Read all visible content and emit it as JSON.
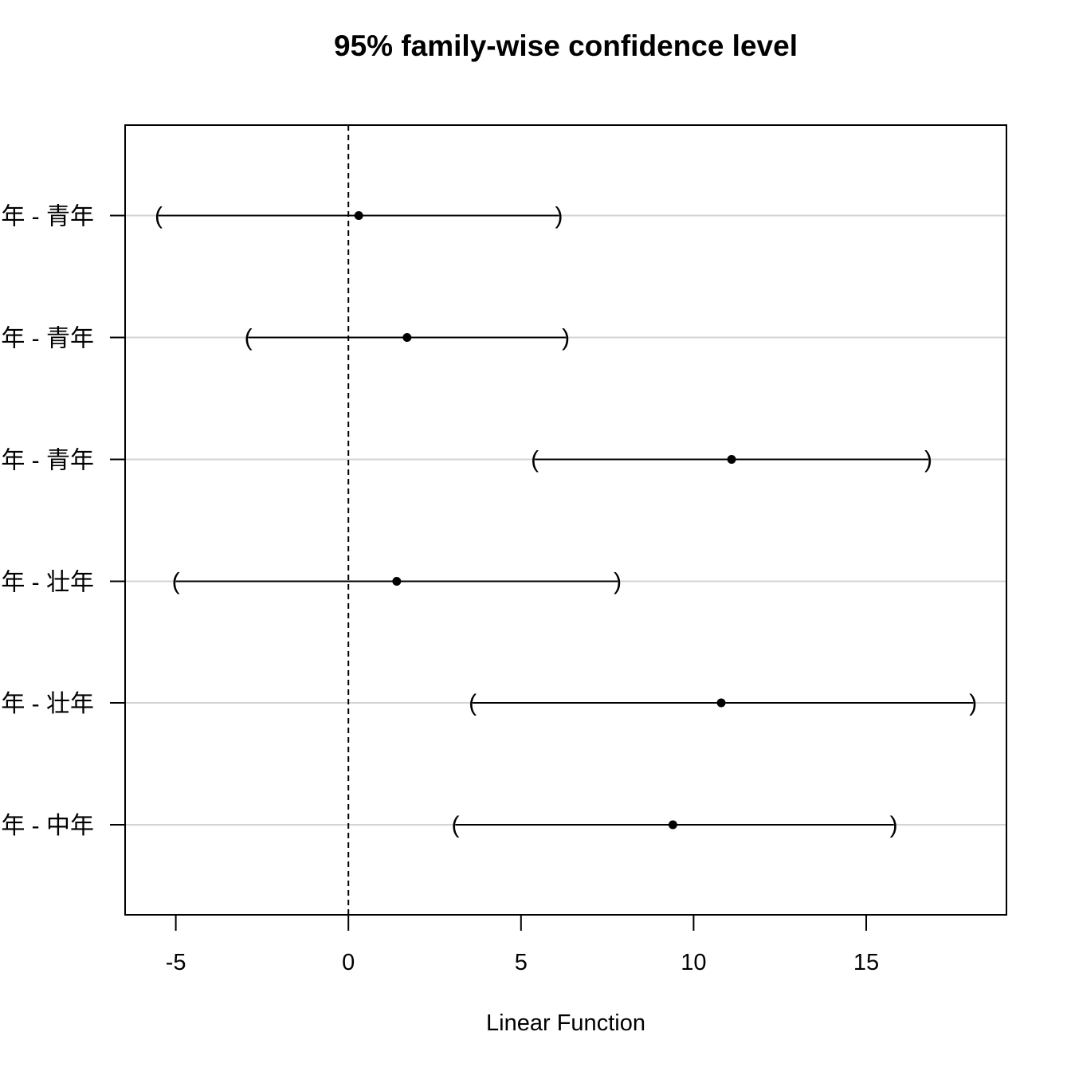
{
  "chart_data": {
    "type": "interval",
    "title": "95% family-wise confidence level",
    "xlabel": "Linear Function",
    "ylabel": "",
    "xlim": [
      -6.5,
      19
    ],
    "xticks": [
      -5,
      0,
      5,
      10,
      15
    ],
    "xtick_labels": [
      "-5",
      "0",
      "5",
      "10",
      "15"
    ],
    "reference_line": 0,
    "grid": "horizontal",
    "comparisons": [
      {
        "label": "年 - 青年",
        "estimate": 0.3,
        "lwr": -5.5,
        "upr": 6.1
      },
      {
        "label": "年 - 青年",
        "estimate": 1.7,
        "lwr": -2.9,
        "upr": 6.3
      },
      {
        "label": "年 - 青年",
        "estimate": 11.1,
        "lwr": 5.4,
        "upr": 16.8
      },
      {
        "label": "年 - 壮年",
        "estimate": 1.4,
        "lwr": -5.0,
        "upr": 7.8
      },
      {
        "label": "年 - 壮年",
        "estimate": 10.8,
        "lwr": 3.6,
        "upr": 18.1
      },
      {
        "label": "年 - 中年",
        "estimate": 9.4,
        "lwr": 3.1,
        "upr": 15.8
      }
    ]
  }
}
